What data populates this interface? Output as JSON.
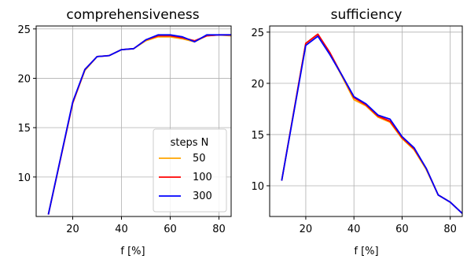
{
  "chart_data": [
    {
      "type": "line",
      "title": "comprehensiveness",
      "xlabel": "f [%]",
      "ylabel": "",
      "xlim": [
        5,
        85
      ],
      "ylim": [
        6,
        25.3
      ],
      "xticks": [
        20,
        40,
        60,
        80
      ],
      "yticks": [
        10,
        15,
        20,
        25
      ],
      "grid": true,
      "legend": {
        "title": "steps N",
        "placement": "lower-right"
      },
      "x": [
        10,
        20,
        25,
        30,
        35,
        40,
        45,
        50,
        55,
        60,
        65,
        70,
        75,
        80,
        85
      ],
      "series": [
        {
          "name": "50",
          "color": "#ffa500",
          "values": [
            6.2,
            17.5,
            20.8,
            22.2,
            22.3,
            22.9,
            23.0,
            23.8,
            24.2,
            24.2,
            24.0,
            23.7,
            24.3,
            24.4,
            24.3
          ]
        },
        {
          "name": "100",
          "color": "#ff0000",
          "values": [
            6.2,
            17.5,
            20.9,
            22.2,
            22.3,
            22.9,
            23.0,
            23.9,
            24.3,
            24.3,
            24.1,
            23.8,
            24.3,
            24.4,
            24.4
          ]
        },
        {
          "name": "300",
          "color": "#0000ff",
          "values": [
            6.2,
            17.6,
            20.9,
            22.2,
            22.3,
            22.9,
            23.0,
            23.9,
            24.4,
            24.4,
            24.2,
            23.7,
            24.4,
            24.4,
            24.4
          ]
        }
      ]
    },
    {
      "type": "line",
      "title": "sufficiency",
      "xlabel": "f [%]",
      "ylabel": "",
      "xlim": [
        5,
        85
      ],
      "ylim": [
        7,
        25.6
      ],
      "xticks": [
        20,
        40,
        60,
        80
      ],
      "yticks": [
        10,
        15,
        20,
        25
      ],
      "grid": true,
      "x": [
        10,
        20,
        25,
        30,
        35,
        40,
        45,
        50,
        55,
        60,
        65,
        70,
        75,
        80,
        85
      ],
      "series": [
        {
          "name": "50",
          "color": "#ffa500",
          "values": [
            10.5,
            23.9,
            24.8,
            22.9,
            20.7,
            18.4,
            17.8,
            16.7,
            16.2,
            14.6,
            13.5,
            11.6,
            9.1,
            8.4,
            7.3
          ]
        },
        {
          "name": "100",
          "color": "#ff0000",
          "values": [
            10.5,
            23.9,
            24.8,
            23.0,
            20.8,
            18.6,
            17.9,
            16.8,
            16.3,
            14.7,
            13.6,
            11.7,
            9.1,
            8.4,
            7.3
          ]
        },
        {
          "name": "300",
          "color": "#0000ff",
          "values": [
            10.5,
            23.7,
            24.6,
            22.8,
            20.8,
            18.7,
            18.0,
            16.9,
            16.5,
            14.8,
            13.7,
            11.7,
            9.1,
            8.4,
            7.3
          ]
        }
      ]
    }
  ]
}
